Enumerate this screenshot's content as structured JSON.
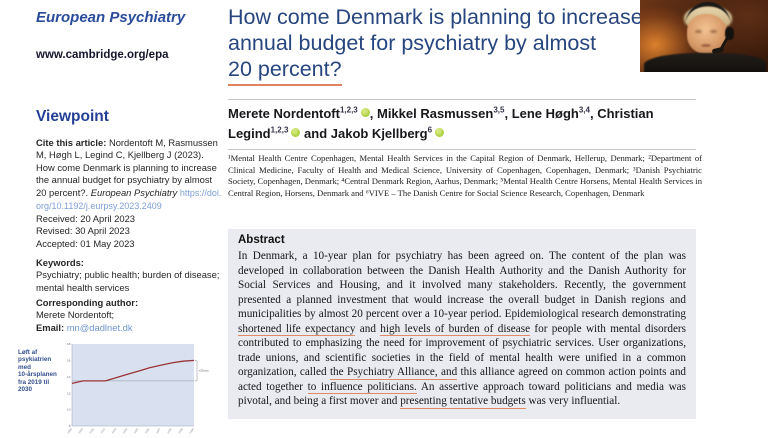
{
  "journal": {
    "name": "European Psychiatry",
    "url": "www.cambridge.org/epa",
    "section": "Viewpoint"
  },
  "citation": {
    "label": "Cite this article:",
    "text": " Nordentoft M, Rasmussen M, Høgh L, Legind C, Kjellberg J (2023). How come Denmark is planning to increase the annual budget for psychiatry by almost 20 percent?. ",
    "journal_italic": "European Psychiatry",
    "doi": "https://doi.org/10.1192/j.eurpsy.2023.2409"
  },
  "dates": {
    "received": "Received: 20 April 2023",
    "revised": "Revised: 30 April 2023",
    "accepted": "Accepted: 01 May 2023"
  },
  "keywords": {
    "label": "Keywords:",
    "text": "Psychiatry; public health; burden of disease; mental health services"
  },
  "corresponding": {
    "label": "Corresponding author:",
    "name": "Merete Nordentoft;",
    "email_label": "Email: ",
    "email": "mn@dadlnet.dk"
  },
  "article": {
    "title_lines": [
      "How come Denmark is planning to increase",
      "annual budget for psychiatry by almost",
      "20 percent?"
    ]
  },
  "authors": [
    {
      "name": "Merete Nordentoft",
      "sup": "1,2,3",
      "orcid": true,
      "sep": ", "
    },
    {
      "name": "Mikkel Rasmussen",
      "sup": "3,5",
      "orcid": false,
      "sep": ", "
    },
    {
      "name": "Lene Høgh",
      "sup": "3,4",
      "orcid": false,
      "sep": ", "
    },
    {
      "name": "Christian Legind",
      "sup": "1,2,3",
      "orcid": true,
      "sep": " and "
    },
    {
      "name": "Jakob Kjellberg",
      "sup": "6",
      "orcid": true,
      "sep": ""
    }
  ],
  "affiliations": "¹Mental Health Centre Copenhagen, Mental Health Services in the Capital Region of Denmark, Hellerup, Denmark; ²Department of Clinical Medicine, Faculty of Health and Medical Science, University of Copenhagen, Copenhagen, Denmark; ³Danish Psychiatric Society, Copenhagen, Denmark; ⁴Central Denmark Region, Aarhus, Denmark; ⁵Mental Health Centre Horsens, Mental Health Services in Central Region, Horsens, Denmark and ⁶VIVE – The Danish Centre for Social Science Research, Copenhagen, Denmark",
  "abstract": {
    "heading": "Abstract",
    "segments": [
      {
        "t": "In Denmark, a 10-year plan for psychiatry has been agreed on. The content of the plan was developed in collaboration between the Danish Health Authority and the Danish Authority for Social Services and Housing, and it involved many stakeholders. Recently, the government presented a planned investment that would increase the overall budget in Danish regions and municipalities by almost 20 percent over a 10-year period. Epidemiological research demonstrating "
      },
      {
        "t": "shortened life expectancy",
        "u": true
      },
      {
        "t": " and "
      },
      {
        "t": "high levels of burden of disease",
        "u": true
      },
      {
        "t": " for people with mental disorders contributed to emphasizing the need for improvement of psychiatric services. User organizations, trade unions, and scientific societies in the field of mental health were unified in a common organization, called "
      },
      {
        "t": "the Psychiatry Alliance, and",
        "u": true
      },
      {
        "t": " this alliance agreed on common action points and acted together "
      },
      {
        "t": "to influence politicians.",
        "u": true
      },
      {
        "t": " An assertive approach toward politicians and media was pivotal, and being a first mover and "
      },
      {
        "t": "presenting tentative budgets",
        "u": true
      },
      {
        "t": " was very influential."
      }
    ]
  },
  "chart_data": {
    "type": "line",
    "title": "Løft af psykiatrien med 10-årsplanen fra 2019 til 2030",
    "side_label_lines": [
      "Løft af",
      "psykiatrien med",
      "10-årsplanen",
      "fra 2019 til 2030"
    ],
    "x": [
      "2019",
      "2020",
      "2021",
      "2022",
      "2023",
      "2024",
      "2025",
      "2026",
      "2027",
      "2028",
      "2029",
      "2030"
    ],
    "values": [
      13.2,
      13.5,
      13.5,
      13.5,
      13.9,
      14.3,
      14.7,
      15.1,
      15.4,
      15.7,
      15.9,
      16.0
    ],
    "ylim": [
      8,
      18
    ],
    "yticks": [
      8,
      10,
      12,
      14,
      16,
      18
    ],
    "baseline_value": 13.5,
    "annotation": "+20 pct.",
    "grid": false,
    "legend": "none",
    "plot_bg": "#d9e1f0",
    "line_color": "#9c3336"
  },
  "colors": {
    "title_blue": "#27457e",
    "viewpoint_blue": "#233f96",
    "doi_link_blue": "#7d9ed6",
    "orcid_green": "#a6ce39",
    "annotation_underline": "#e08a63",
    "abstract_background": "#e9ebf1"
  }
}
